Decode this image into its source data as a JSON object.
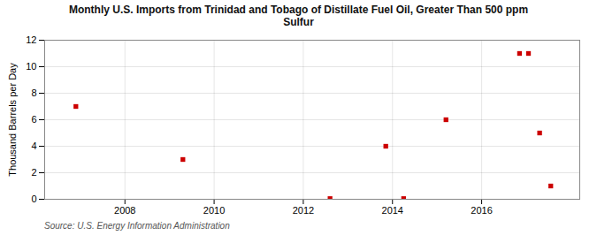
{
  "chart_data": {
    "type": "scatter",
    "title": "Monthly U.S. Imports from Trinidad and Tobago of Distillate Fuel Oil, Greater Than 500 ppm\nSulfur",
    "ylabel": "Thousand Barrels per Day",
    "source": "Source: U.S. Energy Information Administration",
    "x": [
      2006.9,
      2009.3,
      2012.6,
      2013.85,
      2014.25,
      2015.2,
      2016.85,
      2017.05,
      2017.3,
      2017.55
    ],
    "values": [
      7,
      3,
      0.05,
      4,
      0.05,
      6,
      11,
      11,
      5,
      1
    ],
    "color": "#cc0000",
    "marker": "square",
    "xlim": [
      2006.2,
      2018.2
    ],
    "xticks": [
      2008,
      2010,
      2012,
      2014,
      2016
    ],
    "ylim": [
      0,
      12
    ],
    "yticks": [
      0,
      2,
      4,
      6,
      8,
      10,
      12
    ],
    "grid": true
  }
}
